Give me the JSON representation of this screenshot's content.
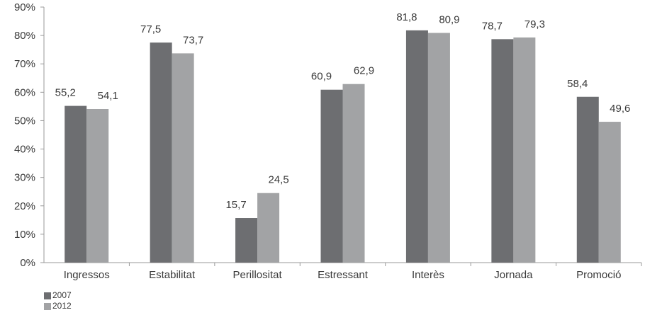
{
  "chart_data": {
    "type": "bar",
    "categories": [
      "Ingressos",
      "Estabilitat",
      "Perillositat",
      "Estressant",
      "Interès",
      "Jornada",
      "Promoció"
    ],
    "series": [
      {
        "name": "2007",
        "values": [
          55.2,
          77.5,
          15.7,
          60.9,
          81.8,
          78.7,
          58.4
        ],
        "labels": [
          "55,2",
          "77,5",
          "15,7",
          "60,9",
          "81,8",
          "78,7",
          "58,4"
        ],
        "color": "#6d6e71"
      },
      {
        "name": "2012",
        "values": [
          54.1,
          73.7,
          24.5,
          62.9,
          80.9,
          79.3,
          49.6
        ],
        "labels": [
          "54,1",
          "73,7",
          "24,5",
          "62,9",
          "80,9",
          "79,3",
          "49,6"
        ],
        "color": "#a2a3a5"
      }
    ],
    "ylim": [
      0,
      90
    ],
    "yticks": [
      0,
      10,
      20,
      30,
      40,
      50,
      60,
      70,
      80,
      90
    ],
    "ytick_labels": [
      "0%",
      "10%",
      "20%",
      "30%",
      "40%",
      "50%",
      "60%",
      "70%",
      "80%",
      "90%"
    ],
    "grid": false,
    "legend_position": "bottom-left"
  }
}
